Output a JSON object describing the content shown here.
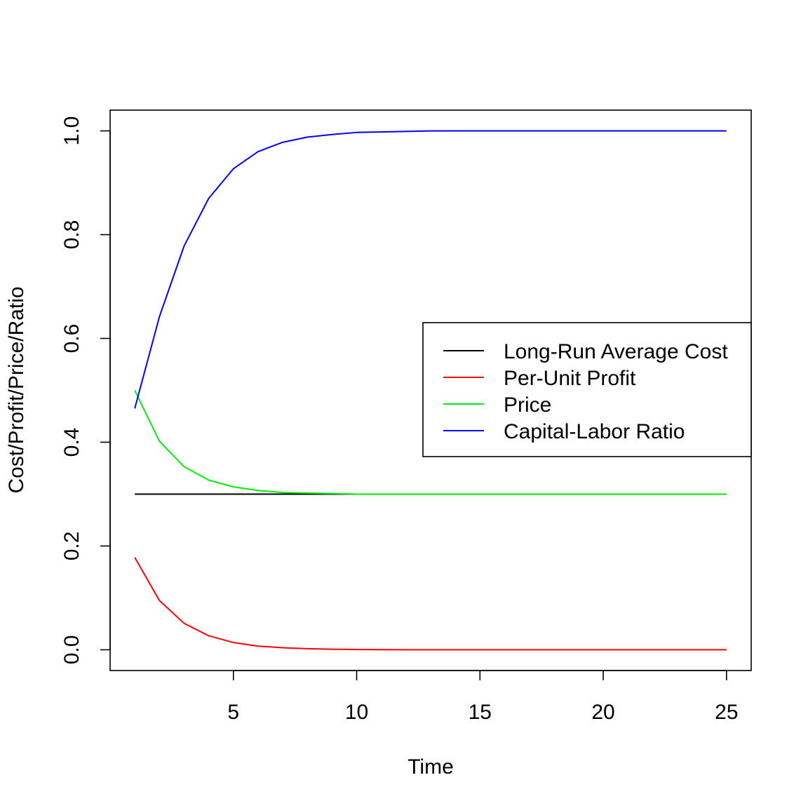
{
  "chart_data": {
    "type": "line",
    "title": "",
    "xlabel": "Time",
    "ylabel": "Cost/Profit/Price/Ratio",
    "xlim": [
      0,
      26
    ],
    "ylim": [
      -0.04,
      1.04
    ],
    "x_ticks": [
      5,
      10,
      15,
      20,
      25
    ],
    "x_tick_labels": [
      "5",
      "10",
      "15",
      "20",
      "25"
    ],
    "y_ticks": [
      0.0,
      0.2,
      0.4,
      0.6,
      0.8,
      1.0
    ],
    "y_tick_labels": [
      "0.0",
      "0.2",
      "0.4",
      "0.6",
      "0.8",
      "1.0"
    ],
    "grid": false,
    "legend_position": "right",
    "x": [
      1,
      2,
      3,
      4,
      5,
      6,
      7,
      8,
      9,
      10,
      11,
      12,
      13,
      14,
      15,
      16,
      17,
      18,
      19,
      20,
      21,
      22,
      23,
      24,
      25
    ],
    "series": [
      {
        "name": "Long-Run Average Cost",
        "color": "#000000",
        "values": [
          0.3,
          0.3,
          0.3,
          0.3,
          0.3,
          0.3,
          0.3,
          0.3,
          0.3,
          0.3,
          0.3,
          0.3,
          0.3,
          0.3,
          0.3,
          0.3,
          0.3,
          0.3,
          0.3,
          0.3,
          0.3,
          0.3,
          0.3,
          0.3,
          0.3
        ]
      },
      {
        "name": "Per-Unit Profit",
        "color": "#ff0000",
        "values": [
          0.178,
          0.095,
          0.051,
          0.027,
          0.014,
          0.007,
          0.004,
          0.002,
          0.001,
          0.0005,
          0.0003,
          0.0001,
          0.0001,
          0.0,
          0.0,
          0.0,
          0.0,
          0.0,
          0.0,
          0.0,
          0.0,
          0.0,
          0.0,
          0.0,
          0.0
        ]
      },
      {
        "name": "Price",
        "color": "#00ee00",
        "values": [
          0.5,
          0.402,
          0.353,
          0.327,
          0.314,
          0.307,
          0.303,
          0.302,
          0.301,
          0.3,
          0.3,
          0.3,
          0.3,
          0.3,
          0.3,
          0.3,
          0.3,
          0.3,
          0.3,
          0.3,
          0.3,
          0.3,
          0.3,
          0.3,
          0.3
        ]
      },
      {
        "name": "Capital-Labor Ratio",
        "color": "#0000ff",
        "values": [
          0.465,
          0.642,
          0.778,
          0.87,
          0.927,
          0.96,
          0.978,
          0.988,
          0.993,
          0.997,
          0.998,
          0.999,
          1.0,
          1.0,
          1.0,
          1.0,
          1.0,
          1.0,
          1.0,
          1.0,
          1.0,
          1.0,
          1.0,
          1.0,
          1.0
        ]
      }
    ]
  }
}
